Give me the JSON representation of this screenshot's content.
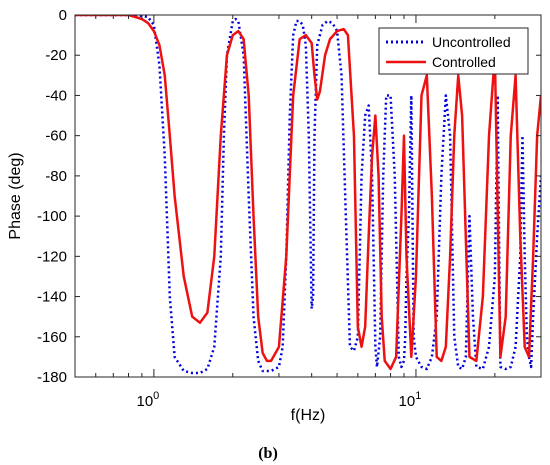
{
  "caption": "(b)",
  "chart_data": {
    "type": "line",
    "title": "",
    "xlabel": "f(Hz)",
    "ylabel": "Phase (deg)",
    "xscale": "log",
    "xlim": [
      0.5,
      30
    ],
    "ylim": [
      -180,
      0
    ],
    "yticks": [
      0,
      -20,
      -40,
      -60,
      -80,
      -100,
      -120,
      -140,
      -160,
      -180
    ],
    "xticks": [
      {
        "value": 1,
        "base": "10",
        "exp": "0"
      },
      {
        "value": 10,
        "base": "10",
        "exp": "1"
      }
    ],
    "grid": false,
    "legend_position": "top-right",
    "series": [
      {
        "name": "Uncontrolled",
        "color": "#0000dd",
        "style": "dotted",
        "x": [
          0.5,
          0.7,
          0.85,
          0.95,
          1.0,
          1.05,
          1.1,
          1.15,
          1.2,
          1.3,
          1.4,
          1.5,
          1.6,
          1.7,
          1.8,
          1.85,
          1.9,
          2.0,
          2.05,
          2.1,
          2.2,
          2.3,
          2.4,
          2.5,
          2.6,
          2.8,
          3.0,
          3.1,
          3.2,
          3.3,
          3.4,
          3.5,
          3.6,
          3.7,
          3.8,
          3.9,
          4.0,
          4.05,
          4.1,
          4.2,
          4.4,
          4.6,
          4.8,
          5.0,
          5.2,
          5.4,
          5.6,
          5.8,
          6.0,
          6.1,
          6.2,
          6.4,
          6.6,
          6.8,
          7.0,
          7.1,
          7.3,
          7.5,
          7.7,
          8.0,
          8.3,
          8.6,
          8.8,
          9.0,
          9.1,
          9.2,
          9.4,
          9.6,
          9.8,
          10.0,
          10.5,
          11.0,
          11.5,
          12.0,
          12.5,
          13.0,
          13.5,
          14.0,
          14.5,
          15.0,
          15.5,
          16.0,
          16.5,
          17.0,
          18.0,
          19.0,
          20.0,
          20.5,
          21.0,
          22.0,
          23.0,
          24.0,
          25.0,
          25.5,
          26.0,
          26.5,
          27.0,
          27.5,
          28.0,
          29.0,
          30.0
        ],
        "y": [
          0,
          0,
          0,
          -1,
          -5,
          -25,
          -70,
          -140,
          -170,
          -177,
          -178,
          -178,
          -176,
          -165,
          -120,
          -60,
          -20,
          -3,
          -2,
          -3,
          -20,
          -90,
          -150,
          -172,
          -177,
          -177,
          -175,
          -165,
          -120,
          -50,
          -10,
          -3,
          -3,
          -5,
          -15,
          -60,
          -146,
          -140,
          -60,
          -15,
          -5,
          -3,
          -4,
          -8,
          -30,
          -100,
          -165,
          -167,
          -160,
          -120,
          -80,
          -50,
          -45,
          -80,
          -165,
          -175,
          -160,
          -80,
          -40,
          -40,
          -80,
          -170,
          -175,
          -172,
          -160,
          -130,
          -100,
          -40,
          -160,
          -170,
          -175,
          -176,
          -170,
          -150,
          -80,
          -40,
          -60,
          -160,
          -175,
          -176,
          -170,
          -100,
          -150,
          -175,
          -176,
          -165,
          -130,
          -40,
          -175,
          -176,
          -175,
          -165,
          -120,
          -60,
          -120,
          -160,
          -170,
          -175,
          -150,
          -110,
          -80
        ]
      },
      {
        "name": "Controlled",
        "color": "#ee1111",
        "style": "solid",
        "x": [
          0.5,
          0.7,
          0.8,
          0.85,
          0.9,
          0.95,
          1.0,
          1.05,
          1.1,
          1.15,
          1.2,
          1.3,
          1.4,
          1.5,
          1.6,
          1.7,
          1.8,
          1.9,
          2.0,
          2.1,
          2.2,
          2.3,
          2.4,
          2.5,
          2.6,
          2.7,
          2.8,
          3.0,
          3.2,
          3.4,
          3.6,
          3.8,
          4.0,
          4.1,
          4.2,
          4.3,
          4.5,
          4.7,
          5.0,
          5.3,
          5.5,
          5.8,
          6.0,
          6.2,
          6.4,
          6.6,
          6.8,
          7.0,
          7.2,
          7.4,
          7.6,
          8.0,
          8.4,
          8.8,
          9.0,
          9.2,
          9.6,
          10.0,
          10.5,
          11.0,
          11.5,
          12.0,
          12.5,
          13.0,
          13.5,
          14.0,
          14.5,
          15.0,
          16.0,
          17.0,
          18.0,
          19.0,
          20.0,
          21.0,
          22.0,
          23.0,
          24.0,
          25.0,
          26.0,
          27.0,
          28.0,
          29.0,
          30.0
        ],
        "y": [
          0,
          0,
          0,
          -1,
          -2,
          -4,
          -8,
          -15,
          -30,
          -60,
          -90,
          -130,
          -150,
          -153,
          -148,
          -120,
          -60,
          -20,
          -10,
          -8,
          -12,
          -40,
          -100,
          -150,
          -168,
          -172,
          -172,
          -165,
          -120,
          -40,
          -12,
          -10,
          -14,
          -30,
          -42,
          -38,
          -20,
          -12,
          -8,
          -7,
          -10,
          -60,
          -155,
          -165,
          -155,
          -110,
          -70,
          -50,
          -80,
          -150,
          -172,
          -176,
          -170,
          -100,
          -60,
          -120,
          -170,
          -130,
          -40,
          -30,
          -90,
          -170,
          -172,
          -165,
          -120,
          -60,
          -30,
          -50,
          -170,
          -172,
          -140,
          -60,
          -20,
          -170,
          -150,
          -60,
          -30,
          -110,
          -165,
          -170,
          -120,
          -60,
          -40
        ]
      }
    ]
  }
}
